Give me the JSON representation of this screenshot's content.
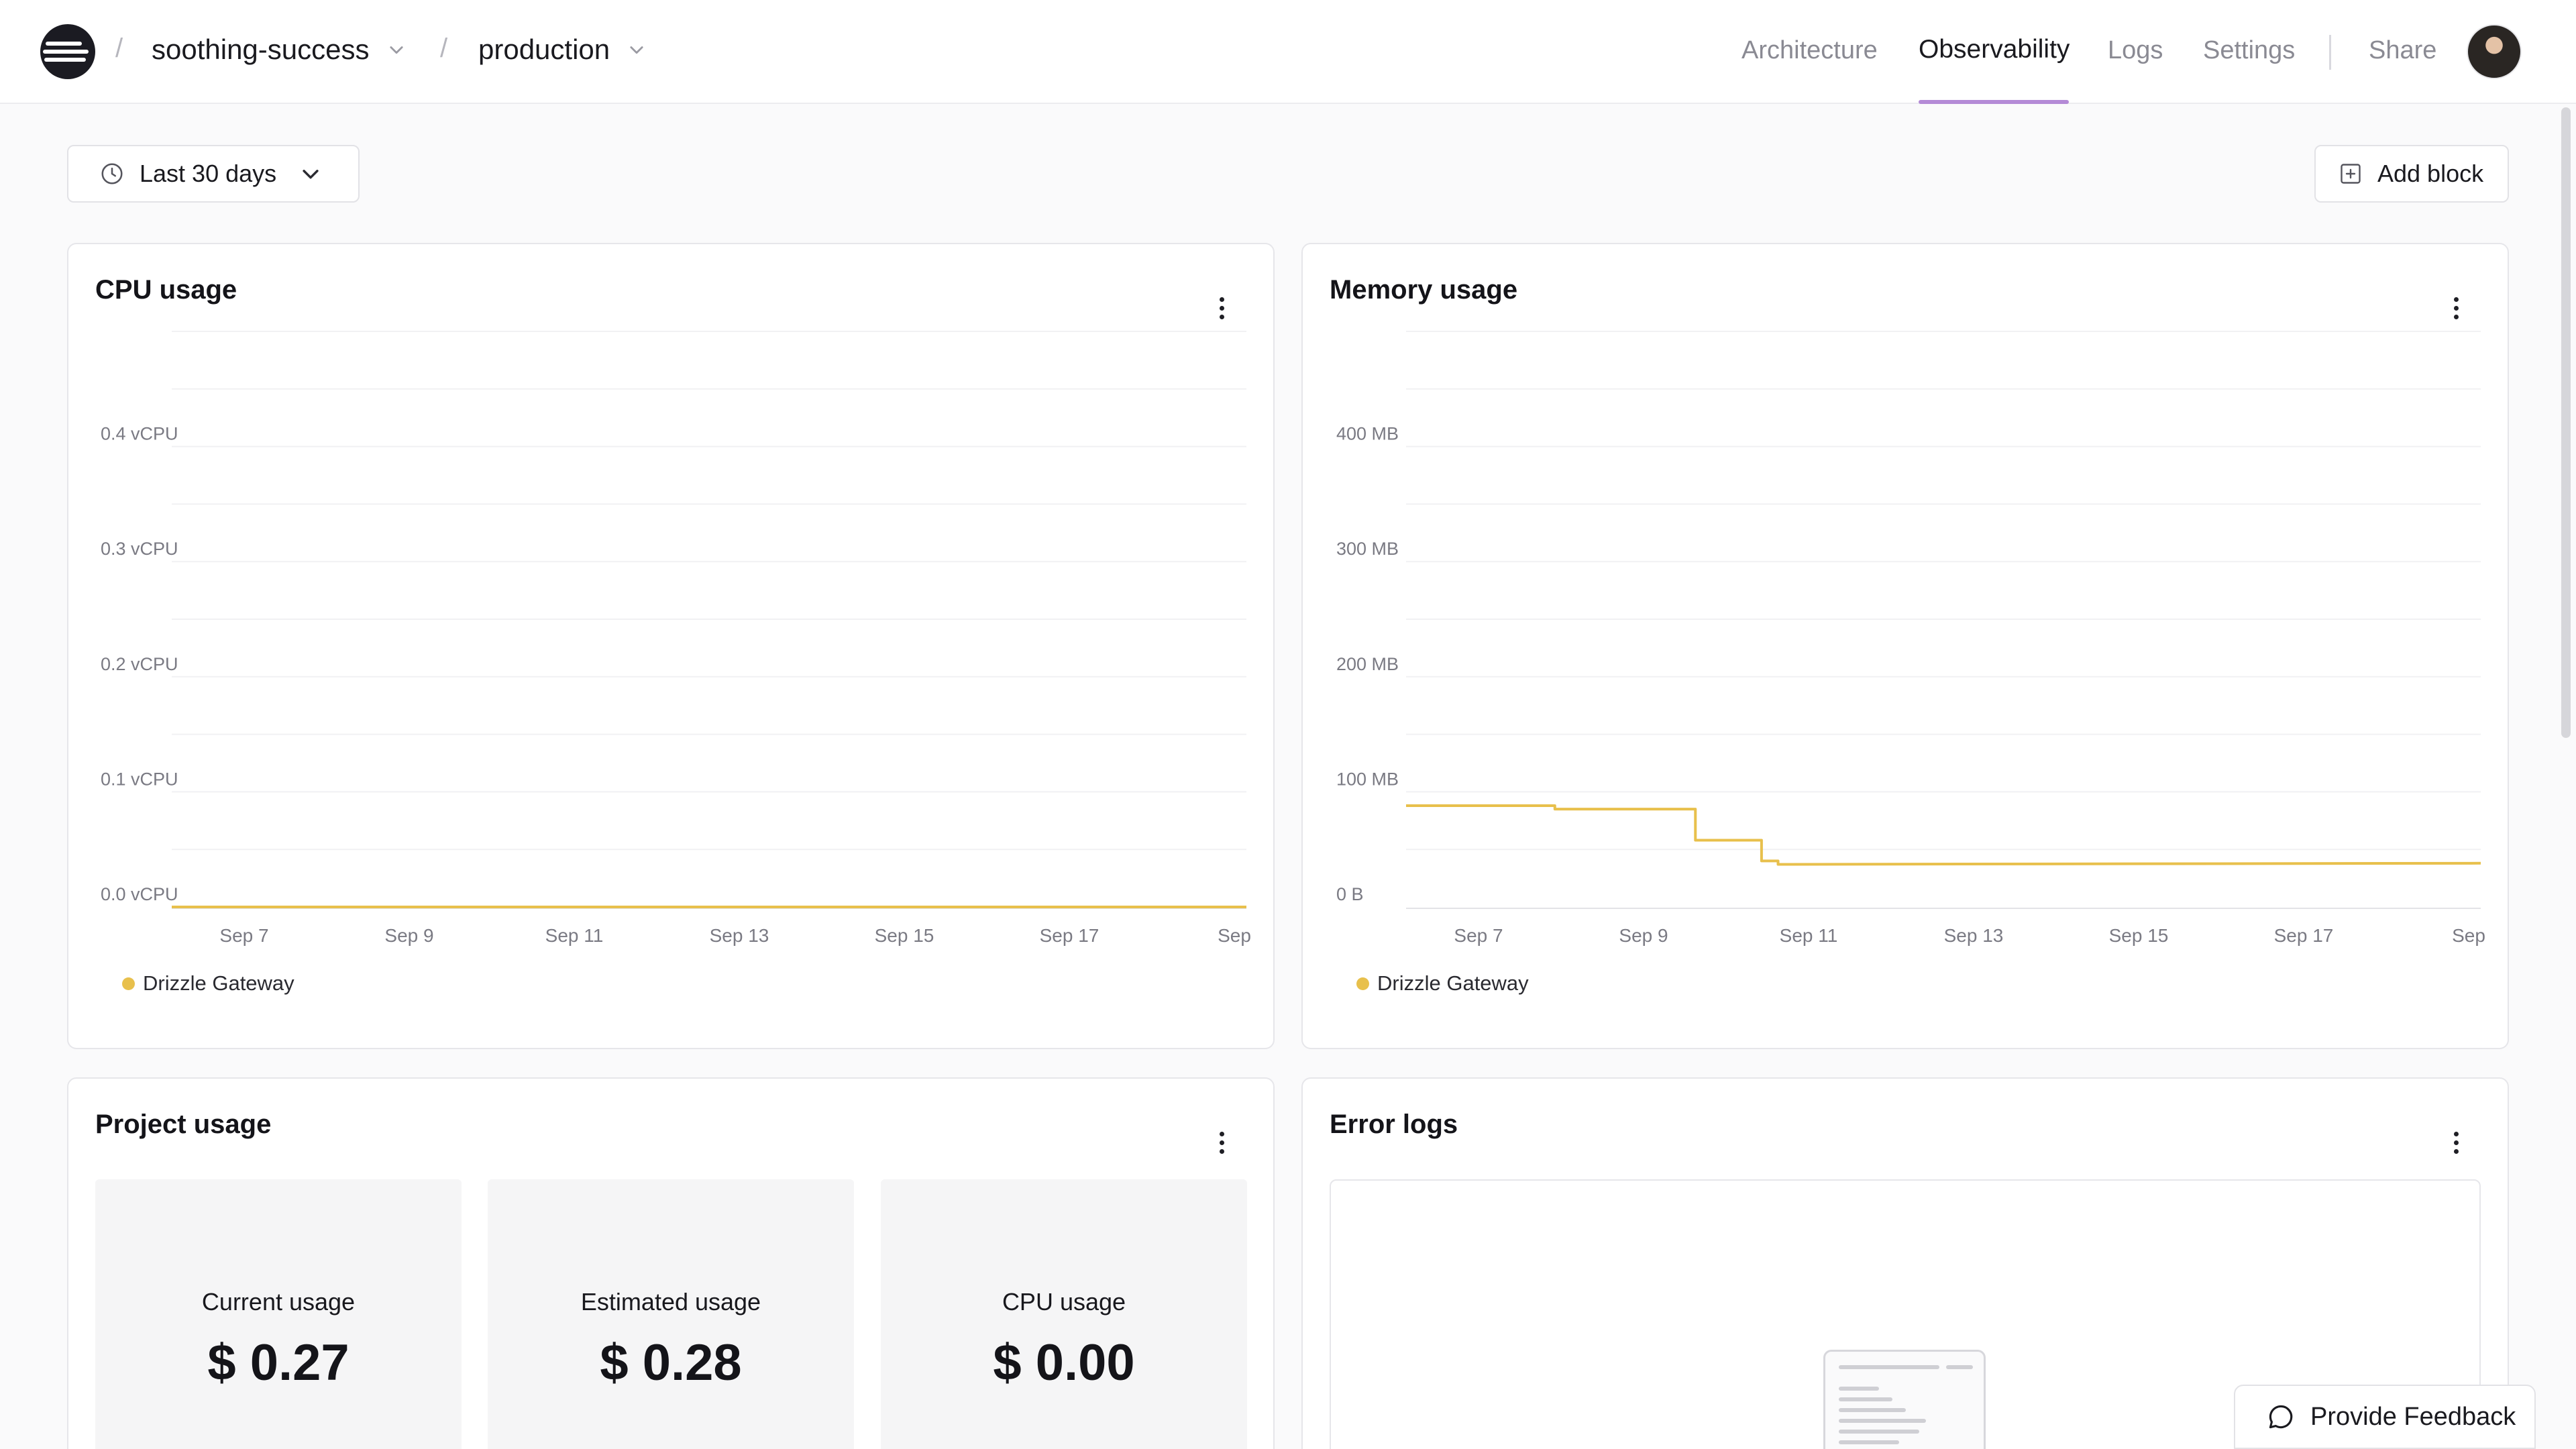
{
  "nav": {
    "project": "soothing-success",
    "environment": "production",
    "separator": "/",
    "links": [
      {
        "label": "Architecture",
        "active": false
      },
      {
        "label": "Observability",
        "active": true
      },
      {
        "label": "Logs",
        "active": false
      },
      {
        "label": "Settings",
        "active": false
      }
    ],
    "share_label": "Share"
  },
  "toolbar": {
    "range_label": "Last 30 days",
    "add_block_label": "Add block"
  },
  "cpu_card": {
    "title": "CPU usage",
    "legend": "Drizzle Gateway"
  },
  "memory_card": {
    "title": "Memory usage",
    "legend": "Drizzle Gateway"
  },
  "project_usage": {
    "title": "Project usage",
    "stats": [
      {
        "label": "Current usage",
        "value": "$ 0.27"
      },
      {
        "label": "Estimated usage",
        "value": "$ 0.28"
      },
      {
        "label": "CPU usage",
        "value": "$ 0.00"
      }
    ]
  },
  "error_logs": {
    "title": "Error logs"
  },
  "feedback": {
    "label": "Provide Feedback"
  },
  "colors": {
    "series": "#e8c04c",
    "accent": "#b48ad6"
  },
  "chart_data": [
    {
      "type": "line",
      "title": "CPU usage",
      "x_ticks": [
        "Sep 7",
        "Sep 9",
        "Sep 11",
        "Sep 13",
        "Sep 15",
        "Sep 17",
        "Sep"
      ],
      "y_ticks": [
        "0.0 vCPU",
        "0.1 vCPU",
        "0.2 vCPU",
        "0.3 vCPU",
        "0.4 vCPU"
      ],
      "ylim": [
        0,
        0.5
      ],
      "x_range_days": [
        6,
        19
      ],
      "series": [
        {
          "name": "Drizzle Gateway",
          "x": [
            6,
            19
          ],
          "y": [
            0,
            0
          ]
        }
      ]
    },
    {
      "type": "line",
      "title": "Memory usage",
      "x_ticks": [
        "Sep 7",
        "Sep 9",
        "Sep 11",
        "Sep 13",
        "Sep 15",
        "Sep 17",
        "Sep"
      ],
      "y_ticks": [
        "0 B",
        "100 MB",
        "200 MB",
        "300 MB",
        "400 MB"
      ],
      "ylim": [
        0,
        500
      ],
      "x_range_days": [
        6,
        19
      ],
      "series": [
        {
          "name": "Drizzle Gateway",
          "x": [
            6,
            7.8,
            7.8,
            9.5,
            9.5,
            10.3,
            10.3,
            10.5,
            10.5,
            19
          ],
          "y": [
            88,
            88,
            85,
            85,
            58,
            58,
            40,
            40,
            37,
            38
          ]
        }
      ]
    }
  ]
}
